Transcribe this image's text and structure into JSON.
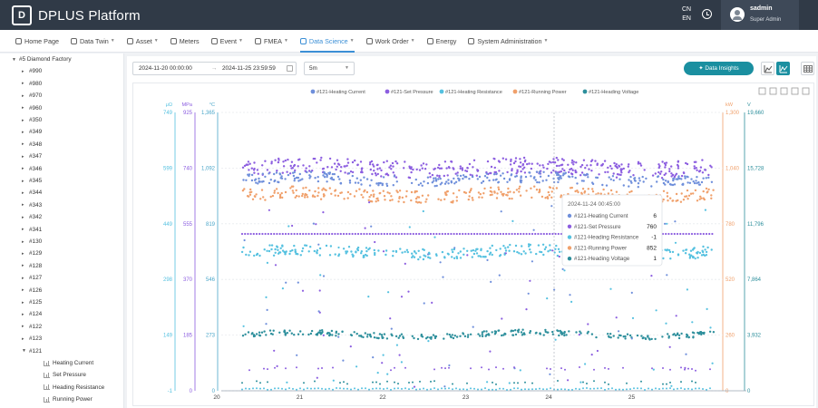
{
  "app": {
    "title": "DPLUS Platform",
    "logo_letter": "D"
  },
  "header": {
    "lang": [
      "CN",
      "EN"
    ],
    "user": {
      "name": "sadmin",
      "role": "Super Admin"
    }
  },
  "nav": [
    {
      "label": "Home Page",
      "icon": "home-icon",
      "dropdown": false,
      "active": false
    },
    {
      "label": "Data Twin",
      "icon": "data-twin-icon",
      "dropdown": true,
      "active": false
    },
    {
      "label": "Asset",
      "icon": "asset-icon",
      "dropdown": true,
      "active": false
    },
    {
      "label": "Meters",
      "icon": "meters-icon",
      "dropdown": false,
      "active": false
    },
    {
      "label": "Event",
      "icon": "event-icon",
      "dropdown": true,
      "active": false
    },
    {
      "label": "FMEA",
      "icon": "fmea-icon",
      "dropdown": true,
      "active": false
    },
    {
      "label": "Data Science",
      "icon": "data-science-icon",
      "dropdown": true,
      "active": true
    },
    {
      "label": "Work Order",
      "icon": "work-order-icon",
      "dropdown": true,
      "active": false
    },
    {
      "label": "Energy",
      "icon": "energy-icon",
      "dropdown": false,
      "active": false
    },
    {
      "label": "System Administration",
      "icon": "gear-icon",
      "dropdown": true,
      "active": false
    }
  ],
  "sidebar": {
    "root": "#5 Diamond Factory",
    "items": [
      "#990",
      "#980",
      "#970",
      "#960",
      "#350",
      "#349",
      "#348",
      "#347",
      "#346",
      "#345",
      "#344",
      "#343",
      "#342",
      "#341",
      "#130",
      "#129",
      "#128",
      "#127",
      "#126",
      "#125",
      "#124",
      "#122",
      "#123",
      "#121"
    ],
    "expanded": "#121",
    "leaves": [
      "Heating Current",
      "Set Pressure",
      "Heading Resistance",
      "Running Power"
    ]
  },
  "toolbar": {
    "date_start": "2024-11-20 00:00:00",
    "date_sep": "→",
    "date_end": "2024-11-25 23:59:59",
    "interval": "5m",
    "insights_label": "Data Insights",
    "insights_icon": "sparkle-icon"
  },
  "chart_data": {
    "type": "scatter",
    "legend": [
      "#121-Heating Current",
      "#121-Set Pressure",
      "#121-Heating Resistance",
      "#121-Running Power",
      "#121-Heading Voltage"
    ],
    "colors": [
      "#6f8fdb",
      "#8c5ee0",
      "#55c1e0",
      "#f0a06b",
      "#2d8f9c"
    ],
    "units": [
      "μΩ",
      "MPa",
      "°C",
      "kW",
      "V"
    ],
    "x_ticks": [
      "20",
      "21",
      "22",
      "23",
      "24",
      "25"
    ],
    "left_axes": [
      {
        "label": "μΩ",
        "color": "#55c1e0",
        "ticks": [
          "749",
          "599",
          "449",
          "298",
          "149",
          "-1"
        ]
      },
      {
        "label": "MPa",
        "color": "#8c5ee0",
        "ticks": [
          "925",
          "740",
          "555",
          "370",
          "185",
          "0"
        ]
      },
      {
        "label": "°C",
        "color": "#4aa6c9",
        "ticks": [
          "1,365",
          "1,092",
          "819",
          "546",
          "273",
          "0"
        ]
      }
    ],
    "right_axes": [
      {
        "label": "kW",
        "color": "#f0a06b",
        "ticks": [
          "1,300",
          "1,040",
          "780",
          "520",
          "260",
          "0"
        ]
      },
      {
        "label": "V",
        "color": "#2d8f9c",
        "ticks": [
          "19,660",
          "15,728",
          "11,796",
          "7,864",
          "3,932",
          "0"
        ]
      }
    ],
    "series_levels": [
      {
        "name": "#121-Heating Current",
        "band_low": 5,
        "band_high": 8
      },
      {
        "name": "#121-Set Pressure",
        "band_low": 760,
        "band_high": 790
      },
      {
        "name": "#121-Heating Resistance",
        "band_low": 440,
        "band_high": 460
      },
      {
        "name": "#121-Running Power",
        "band_low": 850,
        "band_high": 900
      },
      {
        "name": "#121-Heading Voltage",
        "band_low": 3800,
        "band_high": 3900
      }
    ],
    "tooltip": {
      "time": "2024-11-24 00:45:00",
      "rows": [
        {
          "name": "#121-Heating Current",
          "value": "6"
        },
        {
          "name": "#121-Set Pressure",
          "value": "760"
        },
        {
          "name": "#121-Heading Resistance",
          "value": "-1"
        },
        {
          "name": "#121-Running Power",
          "value": "852"
        },
        {
          "name": "#121-Heading Voltage",
          "value": "1"
        }
      ]
    }
  }
}
